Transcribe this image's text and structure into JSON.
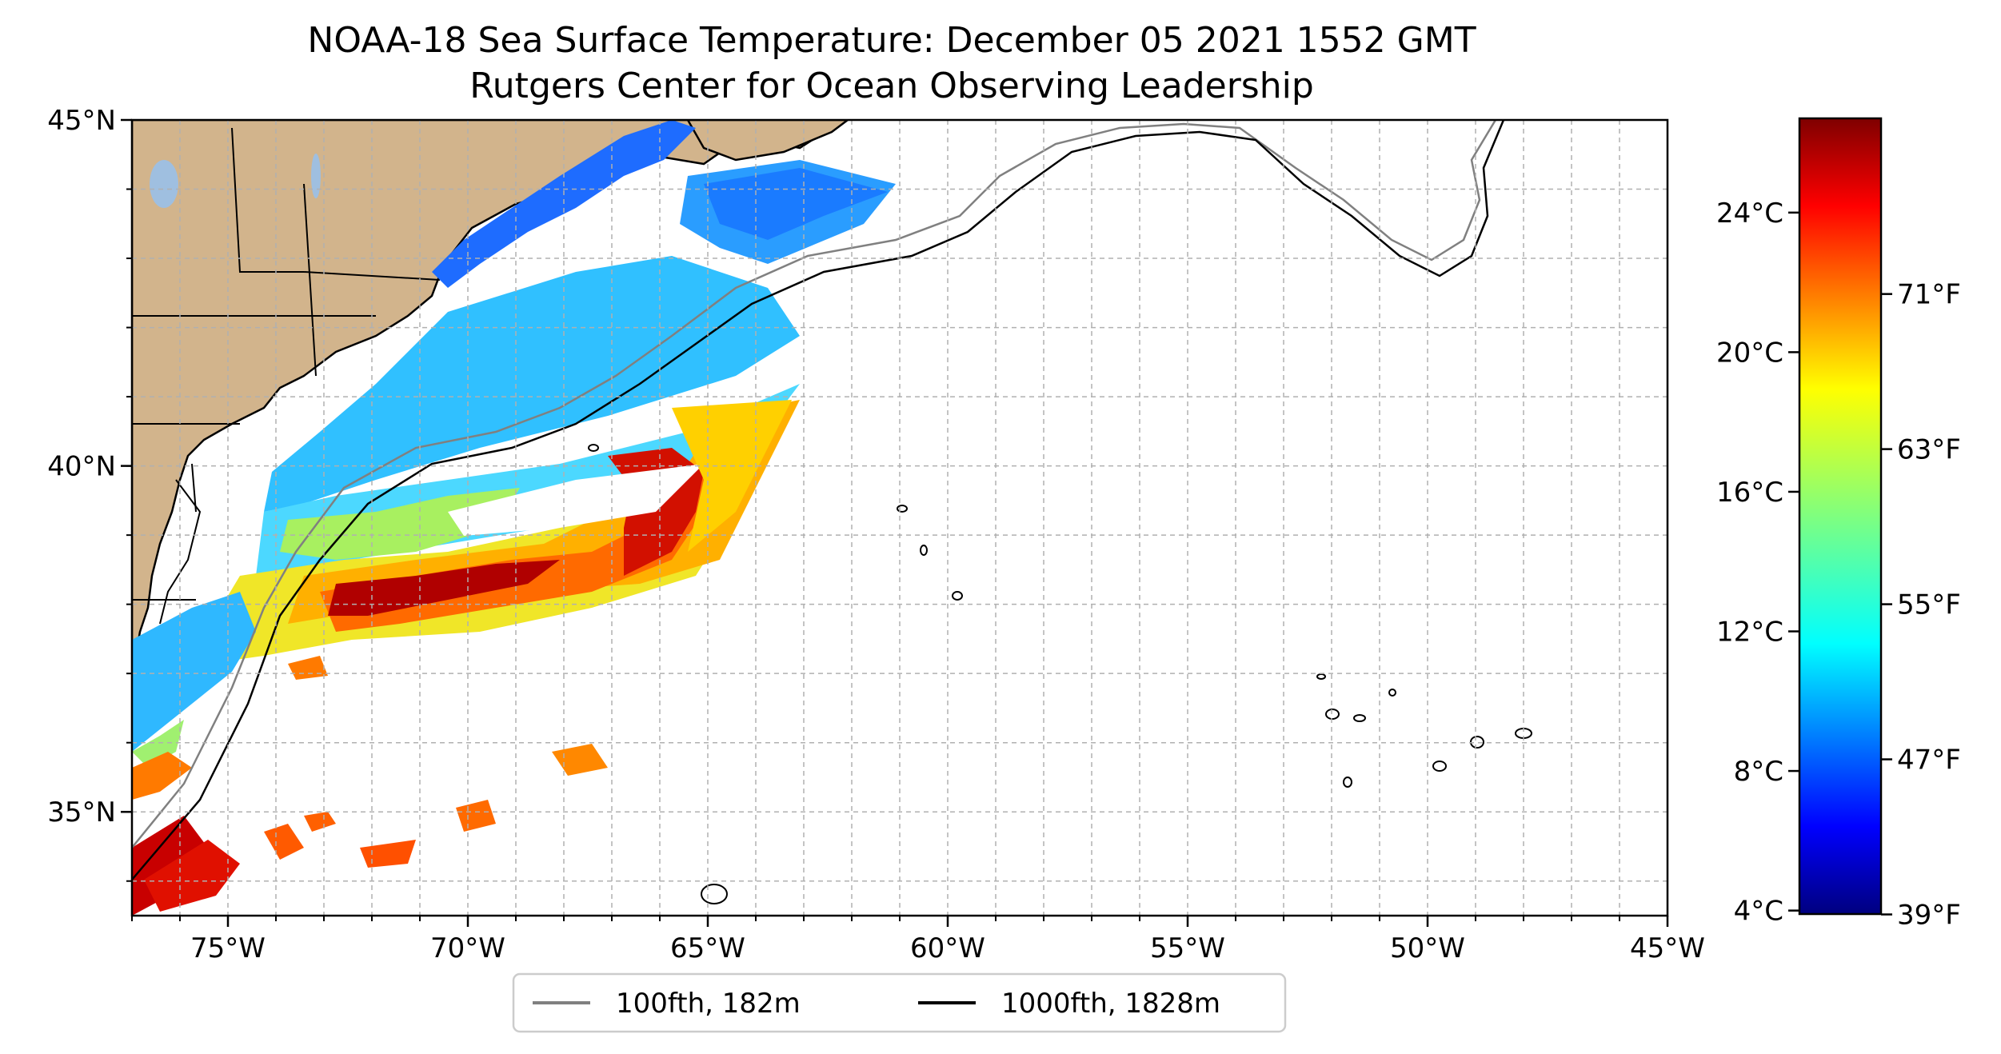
{
  "title": {
    "line1": "NOAA-18 Sea Surface Temperature: December 05 2021 1552 GMT",
    "line2": "Rutgers Center for Ocean Observing Leadership"
  },
  "map": {
    "lon_range": [
      -77,
      -45
    ],
    "lat_range": [
      33.5,
      45
    ],
    "lon_ticks": [
      {
        "value": -75,
        "label": "75°W"
      },
      {
        "value": -70,
        "label": "70°W"
      },
      {
        "value": -65,
        "label": "65°W"
      },
      {
        "value": -60,
        "label": "60°W"
      },
      {
        "value": -55,
        "label": "55°W"
      },
      {
        "value": -50,
        "label": "50°W"
      },
      {
        "value": -45,
        "label": "45°W"
      }
    ],
    "lat_ticks": [
      {
        "value": 35,
        "label": "35°N"
      },
      {
        "value": 40,
        "label": "40°N"
      },
      {
        "value": 45,
        "label": "45°N"
      }
    ],
    "grid": true,
    "land_color": "#d2b48c"
  },
  "colorbar": {
    "colormap": "jet",
    "celsius_range": [
      3.9,
      26.7
    ],
    "celsius_ticks": [
      {
        "value": 4,
        "label": "4°C"
      },
      {
        "value": 8,
        "label": "8°C"
      },
      {
        "value": 12,
        "label": "12°C"
      },
      {
        "value": 16,
        "label": "16°C"
      },
      {
        "value": 20,
        "label": "20°C"
      },
      {
        "value": 24,
        "label": "24°C"
      }
    ],
    "fahrenheit_ticks": [
      {
        "value": 39,
        "label": "39°F"
      },
      {
        "value": 47,
        "label": "47°F"
      },
      {
        "value": 55,
        "label": "55°F"
      },
      {
        "value": 63,
        "label": "63°F"
      },
      {
        "value": 71,
        "label": "71°F"
      }
    ]
  },
  "legend": {
    "placement": "bottom-center",
    "items": [
      {
        "label": "100fth, 182m",
        "color": "#808080"
      },
      {
        "label": "1000fth, 1828m",
        "color": "#000000"
      }
    ]
  }
}
